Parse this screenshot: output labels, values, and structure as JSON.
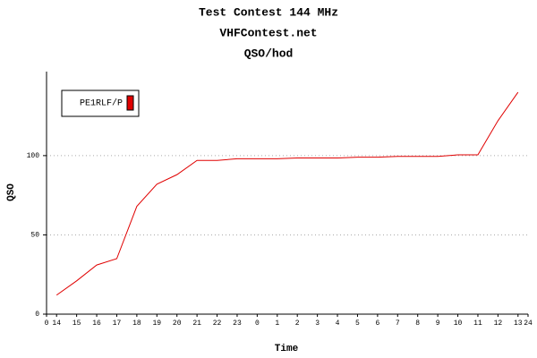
{
  "chart_data": {
    "type": "line",
    "title": "Test Contest 144 MHz",
    "subtitles": [
      "VHFContest.net",
      "QSO/hod"
    ],
    "x_label": "Time",
    "y_label": "QSO",
    "x": [
      0.5,
      1.5,
      2.5,
      3.5,
      4.5,
      5.5,
      6.5,
      7.5,
      8.5,
      9.5,
      10.5,
      11.5,
      12.5,
      13.5,
      14.5,
      15.5,
      16.5,
      17.5,
      18.5,
      19.5,
      20.5,
      21.5,
      22.5,
      23.5
    ],
    "series": [
      {
        "name": "PE1RLF/P",
        "color": "#e00000",
        "values": [
          12,
          21,
          31,
          35,
          68,
          82,
          88,
          97,
          97,
          98,
          98,
          98,
          98.5,
          98.5,
          98.5,
          99,
          99,
          99.5,
          99.5,
          99.5,
          100.5,
          100.5,
          122,
          140
        ]
      }
    ],
    "xlim": [
      0,
      24
    ],
    "xticks": [
      0,
      {
        "value": 0.5,
        "label": "14"
      },
      {
        "value": 1.5,
        "label": "15"
      },
      {
        "value": 2.5,
        "label": "16"
      },
      {
        "value": 3.5,
        "label": "17"
      },
      {
        "value": 4.5,
        "label": "18"
      },
      {
        "value": 5.5,
        "label": "19"
      },
      {
        "value": 6.5,
        "label": "20"
      },
      {
        "value": 7.5,
        "label": "21"
      },
      {
        "value": 8.5,
        "label": "22"
      },
      {
        "value": 9.5,
        "label": "23"
      },
      {
        "value": 10.5,
        "label": "0"
      },
      {
        "value": 11.5,
        "label": "1"
      },
      {
        "value": 12.5,
        "label": "2"
      },
      {
        "value": 13.5,
        "label": "3"
      },
      {
        "value": 14.5,
        "label": "4"
      },
      {
        "value": 15.5,
        "label": "5"
      },
      {
        "value": 16.5,
        "label": "6"
      },
      {
        "value": 17.5,
        "label": "7"
      },
      {
        "value": 18.5,
        "label": "8"
      },
      {
        "value": 19.5,
        "label": "9"
      },
      {
        "value": 20.5,
        "label": "10"
      },
      {
        "value": 21.5,
        "label": "11"
      },
      {
        "value": 22.5,
        "label": "12"
      },
      {
        "value": 23.5,
        "label": "13"
      },
      24
    ],
    "ylim": [
      0,
      153
    ],
    "yticks": [
      0,
      50,
      100
    ],
    "grid": true,
    "legend": "upper left"
  }
}
